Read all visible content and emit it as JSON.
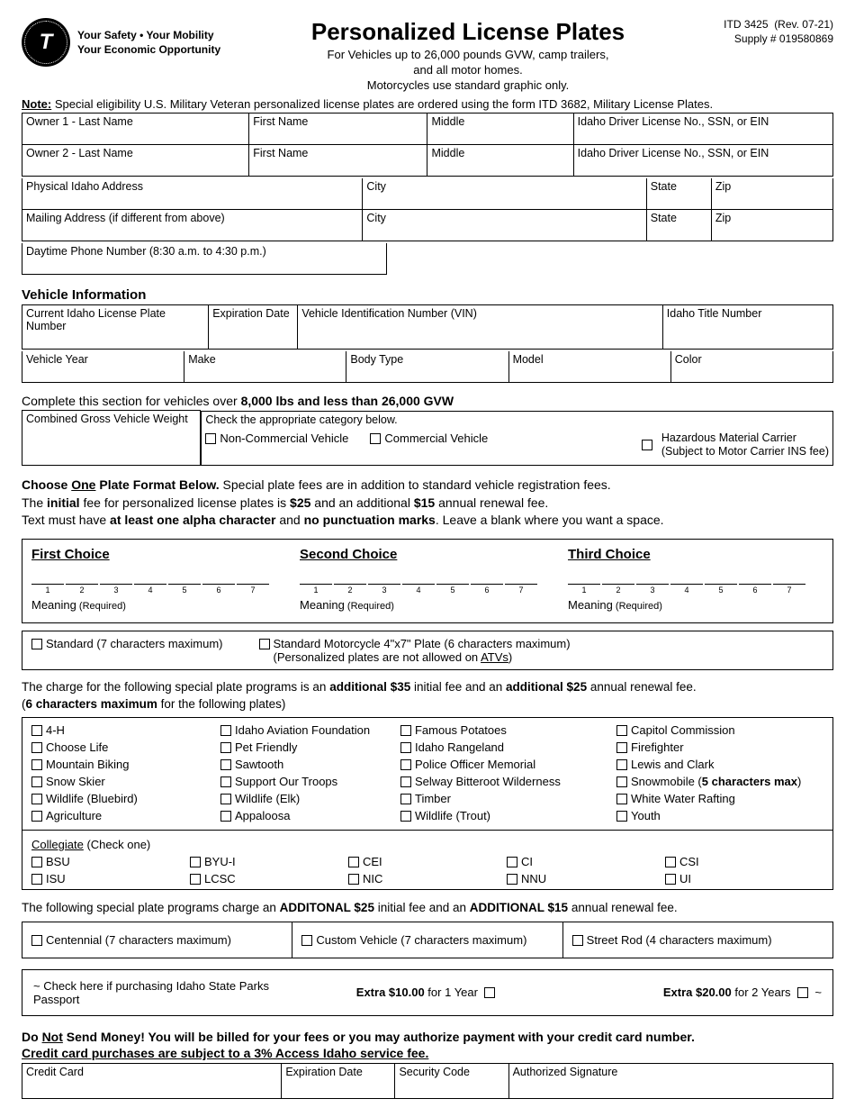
{
  "header": {
    "logo_letter": "T",
    "tagline1": "Your Safety  •  Your Mobility",
    "tagline2": "Your Economic Opportunity",
    "title": "Personalized License Plates",
    "subtitle1": "For Vehicles up to 26,000 pounds GVW, camp trailers,",
    "subtitle2": "and all motor homes.",
    "subtitle3": "Motorcycles use standard graphic only.",
    "form_no": "ITD 3425",
    "rev": "(Rev. 07-21)",
    "supply": "Supply # 019580869"
  },
  "note": {
    "label": "Note:",
    "text": " Special eligibility U.S. Military Veteran personalized license plates are ordered using the form ITD 3682, Military License Plates."
  },
  "owner": {
    "o1_last": "Owner 1 - Last Name",
    "o1_first": "First Name",
    "o1_mid": "Middle",
    "o1_id": "Idaho Driver License No., SSN, or EIN",
    "o2_last": "Owner 2 - Last Name",
    "o2_first": "First Name",
    "o2_mid": "Middle",
    "o2_id": "Idaho Driver License No., SSN, or EIN",
    "addr": "Physical Idaho Address",
    "city": "City",
    "state": "State",
    "zip": "Zip",
    "mail": "Mailing Address (if different from above)",
    "mcity": "City",
    "mstate": "State",
    "mzip": "Zip",
    "phone": "Daytime Phone Number (8:30 a.m. to 4:30 p.m.)"
  },
  "vehicle": {
    "heading": "Vehicle Information",
    "plate": "Current Idaho License Plate Number",
    "exp": "Expiration Date",
    "vin": "Vehicle Identification Number (VIN)",
    "title": "Idaho Title Number",
    "year": "Vehicle Year",
    "make": "Make",
    "body": "Body Type",
    "model": "Model",
    "color": "Color"
  },
  "gvw": {
    "heading_pre": "Complete this section for vehicles over ",
    "heading_bold": "8,000 lbs and less than 26,000 GVW",
    "cgvw": "Combined Gross Vehicle Weight",
    "cat_label": "Check the appropriate category below.",
    "noncom": "Non-Commercial Vehicle",
    "com": "Commercial Vehicle",
    "haz1": "Hazardous Material Carrier",
    "haz2": "(Subject to Motor Carrier INS fee)"
  },
  "plate_instr": {
    "l1a": "Choose ",
    "l1u": "One",
    "l1b": " Plate Format Below.",
    "l1c": " Special plate fees are in addition to standard vehicle registration fees.",
    "l2a": "The ",
    "l2b": "initial",
    "l2c": " fee for personalized license plates is ",
    "l2d": "$25",
    "l2e": " and an additional ",
    "l2f": "$15",
    "l2g": " annual renewal fee.",
    "l3a": "Text must have ",
    "l3b": "at least one alpha character",
    "l3c": " and ",
    "l3d": "no punctuation marks",
    "l3e": ".  Leave a blank where you want a space."
  },
  "choices": {
    "c1": "First Choice",
    "c2": "Second Choice",
    "c3": "Third Choice",
    "meaning": "Meaning",
    "required": " (Required)",
    "nums": [
      "1",
      "2",
      "3",
      "4",
      "5",
      "6",
      "7"
    ]
  },
  "std_row": {
    "std": "Standard (7 characters maximum)",
    "moto1": "Standard Motorcycle 4\"x7\" Plate (6 characters maximum)",
    "moto2": "(Personalized plates are not allowed on ",
    "moto2u": "ATVs",
    "moto2end": ")"
  },
  "special_note": {
    "a": "The charge for the following special plate programs is an ",
    "b": "additional $35",
    "c": " initial fee and an ",
    "d": "additional $25",
    "e": " annual renewal fee.",
    "f": "(",
    "g": "6 characters maximum",
    "h": " for the following plates)"
  },
  "plates": {
    "col1": [
      "4-H",
      "Choose Life",
      "Mountain Biking",
      "Snow Skier",
      "Wildlife (Bluebird)",
      "Agriculture"
    ],
    "col2": [
      "Idaho Aviation Foundation",
      "Pet Friendly",
      "Sawtooth",
      "Support Our Troops",
      "Wildlife (Elk)",
      "Appaloosa"
    ],
    "col3": [
      "Famous Potatoes",
      "Idaho Rangeland",
      "Police Officer Memorial",
      "Selway Bitteroot Wilderness",
      "Timber",
      "Wildlife (Trout)"
    ],
    "col4_pre": [
      "Capitol Commission",
      "Firefighter",
      "Lewis and Clark"
    ],
    "col4_snow_a": "Snowmobile (",
    "col4_snow_b": "5 characters max",
    "col4_snow_c": ")",
    "col4_post": [
      "White Water Rafting",
      "Youth"
    ]
  },
  "collegiate": {
    "title": "Collegiate",
    "title_suffix": " (Check one)",
    "row1": [
      "BSU",
      "BYU-I",
      "CEI",
      "CI",
      "CSI"
    ],
    "row2": [
      "ISU",
      "LCSC",
      "NIC",
      "NNU",
      "UI"
    ]
  },
  "addl": {
    "a": "The following special plate programs charge an ",
    "b": "ADDITONAL $25",
    "c": " initial fee and an ",
    "d": "ADDITIONAL $15",
    "e": " annual renewal fee."
  },
  "three": {
    "cent": "Centennial (7 characters maximum)",
    "custom": "Custom Vehicle (7 characters maximum)",
    "rod": "Street Rod (4 characters maximum)"
  },
  "parks": {
    "text": "~ Check here if purchasing Idaho State Parks Passport",
    "y1a": "Extra $10.00",
    "y1b": " for 1 Year",
    "y2a": "Extra $20.00",
    "y2b": " for 2 Years",
    "tilde": "  ~"
  },
  "billing": {
    "l1a": "Do ",
    "l1u": "Not",
    "l1b": " Send Money!  You will be billed for your fees or you may authorize payment with your credit card number.",
    "l2": "Credit card purchases are subject to a 3% Access Idaho service fee."
  },
  "credit": {
    "card": "Credit Card",
    "exp": "Expiration Date",
    "sec": "Security Code",
    "sig": "Authorized Signature"
  }
}
